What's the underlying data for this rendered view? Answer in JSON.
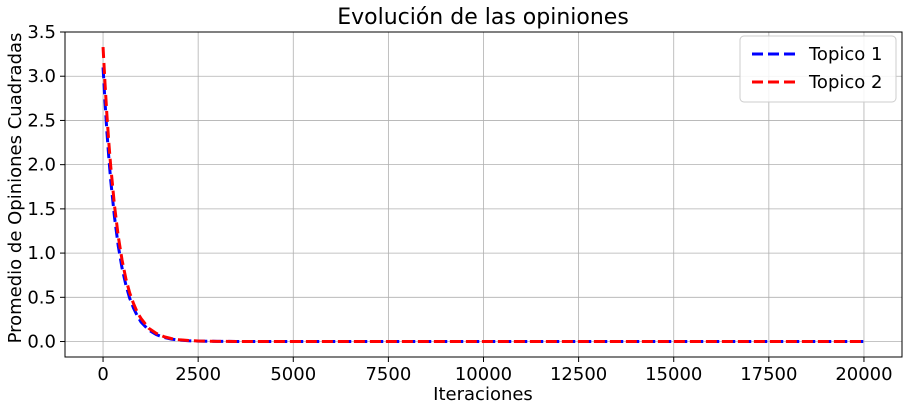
{
  "chart_data": {
    "type": "line",
    "title": "Evolución de las opiniones",
    "xlabel": "Iteraciones",
    "ylabel": "Promedio de Opiniones Cuadradas",
    "xlim": [
      -1000,
      21000
    ],
    "ylim": [
      -0.175,
      3.5
    ],
    "xticks": [
      0,
      2500,
      5000,
      7500,
      10000,
      12500,
      15000,
      17500,
      20000
    ],
    "xtick_labels": [
      "0",
      "2500",
      "5000",
      "7500",
      "10000",
      "12500",
      "15000",
      "17500",
      "20000"
    ],
    "yticks": [
      0.0,
      0.5,
      1.0,
      1.5,
      2.0,
      2.5,
      3.0,
      3.5
    ],
    "ytick_labels": [
      "0.0",
      "0.5",
      "1.0",
      "1.5",
      "2.0",
      "2.5",
      "3.0",
      "3.5"
    ],
    "grid": true,
    "legend_position": "top-right",
    "series": [
      {
        "name": "Topico 1",
        "color": "#0000ff",
        "style": "dashed",
        "x": [
          0,
          50,
          100,
          150,
          200,
          300,
          400,
          500,
          600,
          700,
          800,
          900,
          1000,
          1200,
          1400,
          1600,
          1800,
          2000,
          2250,
          2500,
          2750,
          3000,
          3500,
          4000,
          5000,
          7500,
          10000,
          12500,
          15000,
          17500,
          20000
        ],
        "y": [
          3.1,
          2.72,
          2.38,
          2.09,
          1.83,
          1.41,
          1.08,
          0.83,
          0.64,
          0.49,
          0.38,
          0.29,
          0.22,
          0.13,
          0.078,
          0.046,
          0.027,
          0.016,
          0.009,
          0.005,
          0.003,
          0.002,
          0.001,
          0.0,
          0.0,
          0.0,
          0.0,
          0.0,
          0.0,
          0.0,
          0.0
        ]
      },
      {
        "name": "Topico 2",
        "color": "#ff0000",
        "style": "dashed",
        "x": [
          0,
          50,
          100,
          150,
          200,
          300,
          400,
          500,
          600,
          700,
          800,
          900,
          1000,
          1200,
          1400,
          1600,
          1800,
          2000,
          2250,
          2500,
          2750,
          3000,
          3500,
          4000,
          5000,
          7500,
          10000,
          12500,
          15000,
          17500,
          20000
        ],
        "y": [
          3.33,
          2.93,
          2.57,
          2.26,
          1.99,
          1.54,
          1.19,
          0.92,
          0.71,
          0.55,
          0.43,
          0.33,
          0.26,
          0.15,
          0.092,
          0.055,
          0.033,
          0.02,
          0.011,
          0.006,
          0.004,
          0.002,
          0.001,
          0.0,
          0.0,
          0.0,
          0.0,
          0.0,
          0.0,
          0.0,
          0.0
        ]
      }
    ]
  }
}
